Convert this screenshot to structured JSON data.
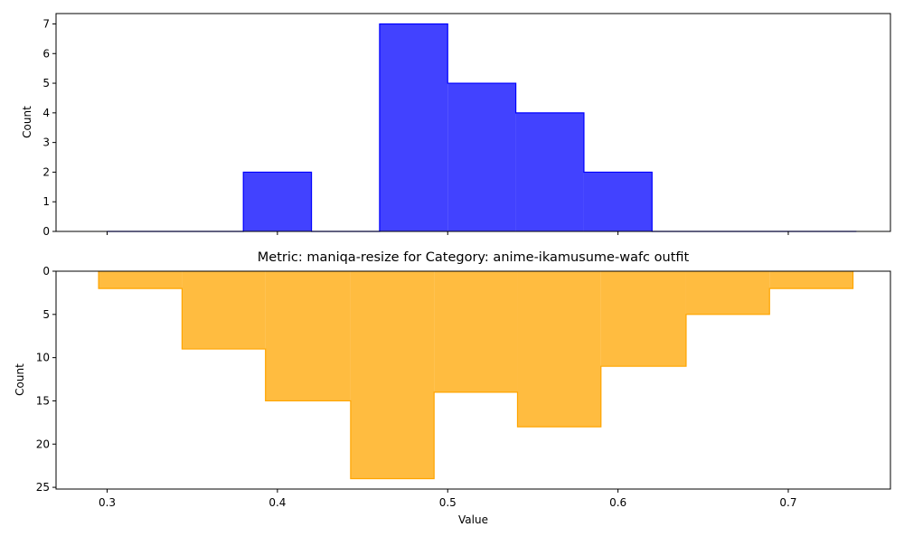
{
  "chart_data": [
    {
      "type": "histogram",
      "panel": "top",
      "xlabel": "",
      "ylabel": "Count",
      "title": "",
      "color": "#0000ff",
      "bin_edges": [
        0.3,
        0.34,
        0.38,
        0.42,
        0.46,
        0.5,
        0.54,
        0.58,
        0.62,
        0.66,
        0.7,
        0.74
      ],
      "counts": [
        0,
        0,
        2,
        0,
        7,
        5,
        4,
        2,
        0,
        0,
        0
      ],
      "xlim": [
        0.27,
        0.76
      ],
      "ylim": [
        0,
        7.35
      ],
      "yticks": [
        0,
        1,
        2,
        3,
        4,
        5,
        6,
        7
      ],
      "xticks": [
        0.3,
        0.4,
        0.5,
        0.6,
        0.7
      ],
      "inverted_y": false
    },
    {
      "type": "histogram",
      "panel": "bottom",
      "title": "Metric: maniqa-resize for Category: anime-ikamusume-wafc outfit",
      "xlabel": "Value",
      "ylabel": "Count",
      "color": "#ffa500",
      "bin_edges": [
        0.295,
        0.344,
        0.393,
        0.443,
        0.492,
        0.541,
        0.59,
        0.64,
        0.689,
        0.738
      ],
      "counts": [
        2,
        9,
        15,
        24,
        14,
        18,
        11,
        5,
        2
      ],
      "xlim": [
        0.27,
        0.76
      ],
      "ylim": [
        0,
        25.2
      ],
      "yticks": [
        0,
        5,
        10,
        15,
        20,
        25
      ],
      "xticks": [
        0.3,
        0.4,
        0.5,
        0.6,
        0.7
      ],
      "xticklabels": [
        "0.3",
        "0.4",
        "0.5",
        "0.6",
        "0.7"
      ],
      "inverted_y": true
    }
  ]
}
